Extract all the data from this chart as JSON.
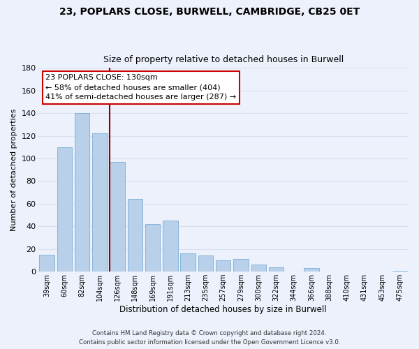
{
  "title_line1": "23, POPLARS CLOSE, BURWELL, CAMBRIDGE, CB25 0ET",
  "title_line2": "Size of property relative to detached houses in Burwell",
  "xlabel": "Distribution of detached houses by size in Burwell",
  "ylabel": "Number of detached properties",
  "categories": [
    "39sqm",
    "60sqm",
    "82sqm",
    "104sqm",
    "126sqm",
    "148sqm",
    "169sqm",
    "191sqm",
    "213sqm",
    "235sqm",
    "257sqm",
    "279sqm",
    "300sqm",
    "322sqm",
    "344sqm",
    "366sqm",
    "388sqm",
    "410sqm",
    "431sqm",
    "453sqm",
    "475sqm"
  ],
  "values": [
    15,
    110,
    140,
    122,
    97,
    64,
    42,
    45,
    16,
    14,
    10,
    11,
    6,
    4,
    0,
    3,
    0,
    0,
    0,
    0,
    1
  ],
  "bar_color": "#b8d0ea",
  "bar_edge_color": "#7aadd4",
  "ylim": [
    0,
    180
  ],
  "yticks": [
    0,
    20,
    40,
    60,
    80,
    100,
    120,
    140,
    160,
    180
  ],
  "vline_x_index": 4,
  "vline_color": "#8b0000",
  "annotation_line1": "23 POPLARS CLOSE: 130sqm",
  "annotation_line2": "← 58% of detached houses are smaller (404)",
  "annotation_line3": "41% of semi-detached houses are larger (287) →",
  "annotation_box_facecolor": "#ffffff",
  "annotation_box_edgecolor": "#cc0000",
  "footer_line1": "Contains HM Land Registry data © Crown copyright and database right 2024.",
  "footer_line2": "Contains public sector information licensed under the Open Government Licence v3.0.",
  "background_color": "#edf1fb",
  "grid_color": "#d8e0f0",
  "title_fontsize": 10,
  "subtitle_fontsize": 9
}
